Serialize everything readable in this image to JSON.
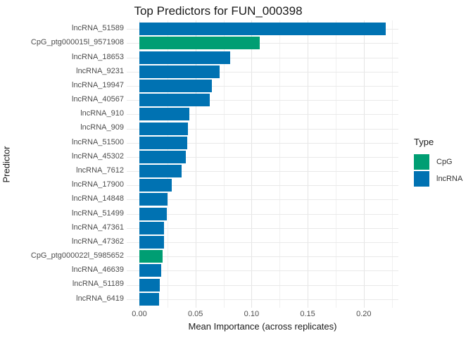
{
  "title": "Top Predictors for FUN_000398",
  "colors": {
    "CpG": "#009E73",
    "lncRNA": "#0072B2",
    "grid_major": "#e4e4e4",
    "grid_minor": "#f0f0f0"
  },
  "chart_data": {
    "type": "bar",
    "orientation": "horizontal",
    "title": "Top Predictors for FUN_000398",
    "xlabel": "Mean Importance (across replicates)",
    "ylabel": "Predictor",
    "xlim": [
      0,
      0.2315
    ],
    "x_major_ticks": [
      0,
      0.05,
      0.1,
      0.15,
      0.2
    ],
    "x_tick_labels": [
      "0.00",
      "0.05",
      "0.10",
      "0.15",
      "0.20"
    ],
    "x_minor_ticks": [
      0.025,
      0.075,
      0.125,
      0.175,
      0.225
    ],
    "grid": true,
    "categories": [
      "lncRNA_51589",
      "CpG_ptg000015l_9571908",
      "lncRNA_18653",
      "lncRNA_9231",
      "lncRNA_19947",
      "lncRNA_40567",
      "lncRNA_910",
      "lncRNA_909",
      "lncRNA_51500",
      "lncRNA_45302",
      "lncRNA_7612",
      "lncRNA_17900",
      "lncRNA_14848",
      "lncRNA_51499",
      "lncRNA_47361",
      "lncRNA_47362",
      "CpG_ptg000022l_5985652",
      "lncRNA_46639",
      "lncRNA_51189",
      "lncRNA_6419"
    ],
    "values": [
      0.2198,
      0.1073,
      0.0809,
      0.0715,
      0.0646,
      0.0629,
      0.0445,
      0.0431,
      0.0429,
      0.0414,
      0.0376,
      0.029,
      0.025,
      0.0247,
      0.022,
      0.0218,
      0.0207,
      0.0194,
      0.0182,
      0.0174
    ],
    "types": [
      "lncRNA",
      "CpG",
      "lncRNA",
      "lncRNA",
      "lncRNA",
      "lncRNA",
      "lncRNA",
      "lncRNA",
      "lncRNA",
      "lncRNA",
      "lncRNA",
      "lncRNA",
      "lncRNA",
      "lncRNA",
      "lncRNA",
      "lncRNA",
      "CpG",
      "lncRNA",
      "lncRNA",
      "lncRNA"
    ],
    "legend": {
      "title": "Type",
      "position": "right",
      "entries": [
        {
          "label": "CpG",
          "color": "#009E73"
        },
        {
          "label": "lncRNA",
          "color": "#0072B2"
        }
      ]
    }
  }
}
